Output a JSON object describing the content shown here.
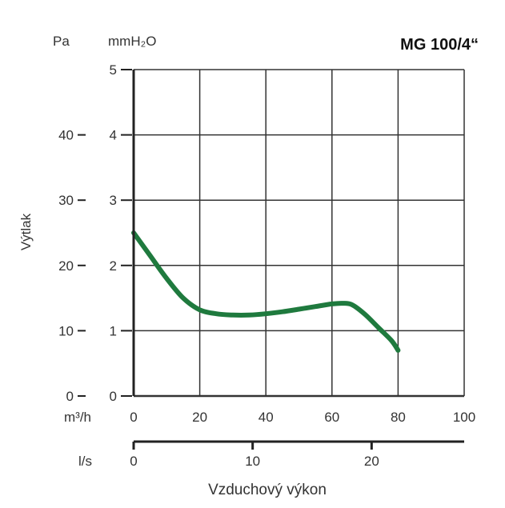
{
  "chart_data": {
    "type": "line",
    "title": "MG 100/4“",
    "xlabel": "Vzduchový výkon",
    "ylabel": "Výtlak",
    "x_unit_primary": "m³/h",
    "x_unit_secondary": "l/s",
    "y_unit_left": "Pa",
    "y_unit_right": "mmH₂O",
    "xlim": [
      0,
      100
    ],
    "ylim_pa": [
      0,
      50
    ],
    "ylim_mmh2o": [
      0,
      5
    ],
    "x_ticks": [
      "0",
      "20",
      "40",
      "60",
      "80",
      "100"
    ],
    "ls_ticks": [
      "0",
      "10",
      "20"
    ],
    "ls_tick_values": [
      0,
      10,
      20
    ],
    "y_ticks_pa": [
      "0",
      "10",
      "20",
      "30",
      "40"
    ],
    "y_ticks_mmh2o": [
      "0",
      "1",
      "2",
      "3",
      "4",
      "5"
    ],
    "grid": true,
    "line_color": "#1f7a3e",
    "series": [
      {
        "x": [
          0,
          5,
          10,
          15,
          20,
          25,
          30,
          35,
          40,
          45,
          50,
          55,
          60,
          63,
          66,
          70,
          74,
          78,
          80
        ],
        "y": [
          25,
          21.5,
          18,
          15,
          13.2,
          12.6,
          12.4,
          12.4,
          12.6,
          12.9,
          13.3,
          13.7,
          14.1,
          14.2,
          14.0,
          12.5,
          10.5,
          8.5,
          7
        ]
      }
    ]
  }
}
